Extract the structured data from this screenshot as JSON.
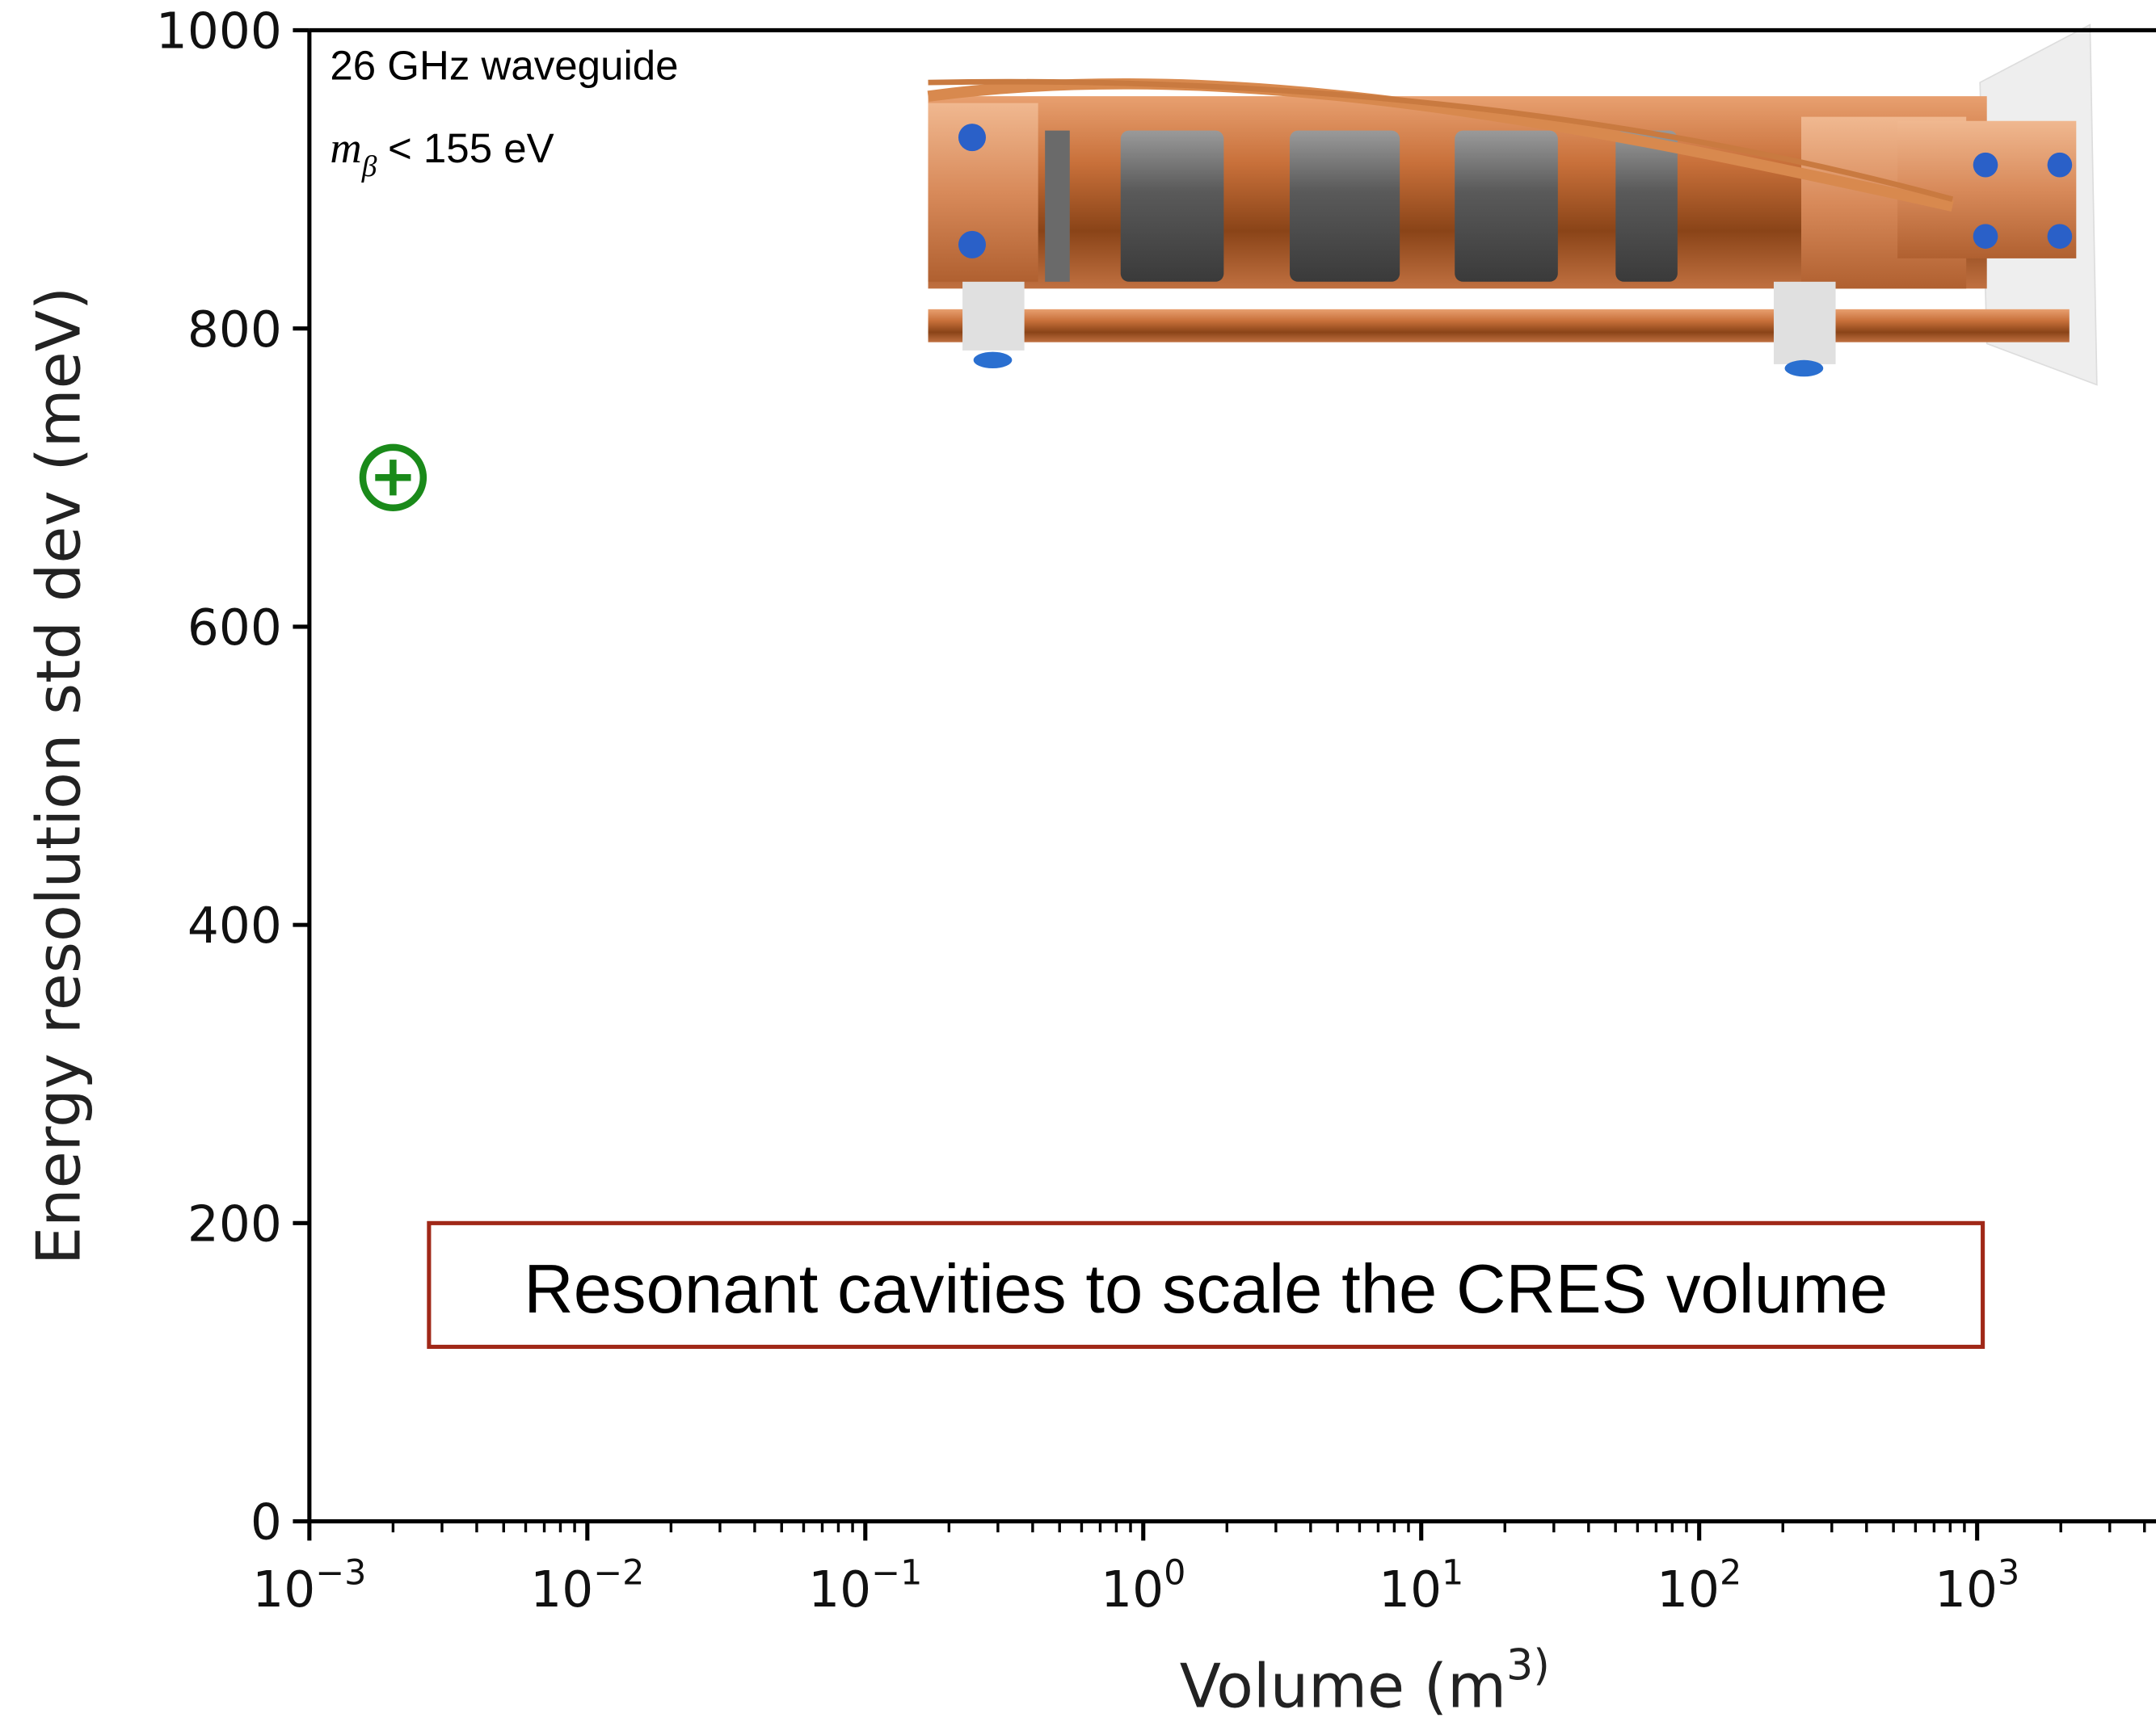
{
  "chart_data": {
    "type": "scatter",
    "ylabel": "Energy resolution std dev (meV)",
    "xlabel": "Volume (m^3)",
    "annotation": "26 GHz waveguide",
    "mass_limit": {
      "symbol": "m",
      "subscript": "β",
      "text": "< 155 eV"
    },
    "boxed_text": "Resonant cavities to scale the CRES volume",
    "x": [
      0.002
    ],
    "values": [
      700
    ],
    "color": "#1a8a1a",
    "xscale": "log",
    "xlim": [
      0.001,
      4400
    ],
    "xticks": [
      {
        "value": 0.001,
        "label": "10^−3"
      },
      {
        "value": 0.01,
        "label": "10^−2"
      },
      {
        "value": 0.1,
        "label": "10^−1"
      },
      {
        "value": 1,
        "label": "10^0"
      },
      {
        "value": 10,
        "label": "10^1"
      },
      {
        "value": 100,
        "label": "10^2"
      },
      {
        "value": 1000,
        "label": "10^3"
      }
    ],
    "ylim": [
      0,
      1000
    ],
    "yticks": [
      0,
      200,
      400,
      600,
      800,
      1000
    ]
  }
}
